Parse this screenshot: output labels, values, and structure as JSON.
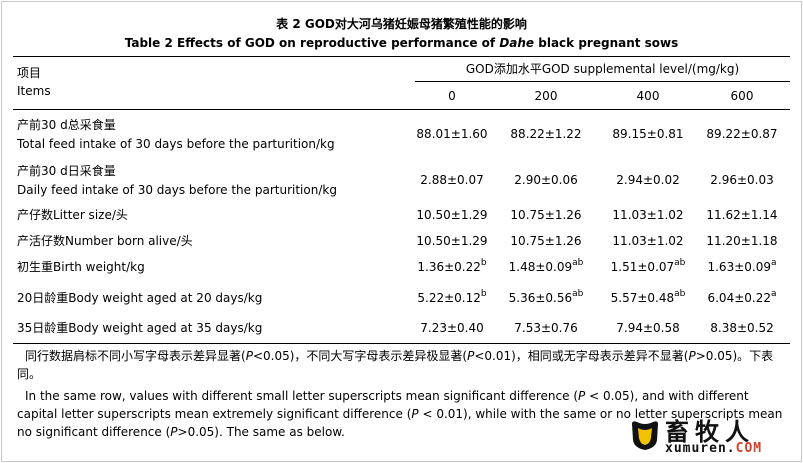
{
  "title_zh": "表 2 GOD对大河乌猪妊娠母猪繁殖性能的影响",
  "title_en": "Table 2 Effects of GOD on reproductive performance of Dahe black pregnant sows",
  "header": {
    "items_zh": "项目",
    "items_en": "Items",
    "span": "GOD添加水平GOD supplemental level/(mg/kg)",
    "levels": [
      "0",
      "200",
      "400",
      "600"
    ]
  },
  "rows": [
    {
      "zh": "产前30 d总采食量",
      "en": "Total feed intake of 30 days before the parturition/kg",
      "cells": [
        {
          "v": "88.01±1.60",
          "s": ""
        },
        {
          "v": "88.22±1.22",
          "s": ""
        },
        {
          "v": "89.15±0.81",
          "s": ""
        },
        {
          "v": "89.22±0.87",
          "s": ""
        }
      ]
    },
    {
      "zh": "产前30 d日采食量",
      "en": "Daily feed intake of 30 days before the parturition/kg",
      "cells": [
        {
          "v": "2.88±0.07",
          "s": ""
        },
        {
          "v": "2.90±0.06",
          "s": ""
        },
        {
          "v": "2.94±0.02",
          "s": ""
        },
        {
          "v": "2.96±0.03",
          "s": ""
        }
      ]
    },
    {
      "zh": "产仔数Litter size/头",
      "en": "",
      "cells": [
        {
          "v": "10.50±1.29",
          "s": ""
        },
        {
          "v": "10.75±1.26",
          "s": ""
        },
        {
          "v": "11.03±1.02",
          "s": ""
        },
        {
          "v": "11.62±1.14",
          "s": ""
        }
      ]
    },
    {
      "zh": "产活仔数Number born alive/头",
      "en": "",
      "cells": [
        {
          "v": "10.50±1.29",
          "s": ""
        },
        {
          "v": "10.75±1.26",
          "s": ""
        },
        {
          "v": "11.03±1.02",
          "s": ""
        },
        {
          "v": "11.20±1.18",
          "s": ""
        }
      ]
    },
    {
      "zh": "初生重Birth weight/kg",
      "en": "",
      "cells": [
        {
          "v": "1.36±0.22",
          "s": "b"
        },
        {
          "v": "1.48±0.09",
          "s": "ab"
        },
        {
          "v": "1.51±0.07",
          "s": "ab"
        },
        {
          "v": "1.63±0.09",
          "s": "a"
        }
      ]
    },
    {
      "zh": "20日龄重Body weight aged at 20 days/kg",
      "en": "",
      "cells": [
        {
          "v": "5.22±0.12",
          "s": "b"
        },
        {
          "v": "5.36±0.56",
          "s": "ab"
        },
        {
          "v": "5.57±0.48",
          "s": "ab"
        },
        {
          "v": "6.04±0.22",
          "s": "a"
        }
      ]
    },
    {
      "zh": "35日龄重Body weight aged at 35 days/kg",
      "en": "",
      "cells": [
        {
          "v": "7.23±0.40",
          "s": ""
        },
        {
          "v": "7.53±0.76",
          "s": ""
        },
        {
          "v": "7.94±0.58",
          "s": ""
        },
        {
          "v": "8.38±0.52",
          "s": ""
        }
      ]
    }
  ],
  "footnote_zh": "同行数据肩标不同小写字母表示差异显著(P<0.05)，不同大写字母表示差异极显著(P<0.01)，相同或无字母表示差异不显著(P>0.05)。下表同。",
  "footnote_en": "In the same row, values with different small letter superscripts mean significant difference (P < 0.05), and with different capital letter superscripts mean extremely significant difference (P < 0.01), while with the same or no letter superscripts mean no significant difference (P>0.05). The same as below.",
  "logo": {
    "text": "畜牧人",
    "url_main": "xumuren.",
    "url_tld": "COM",
    "accent": "#d6402a"
  }
}
